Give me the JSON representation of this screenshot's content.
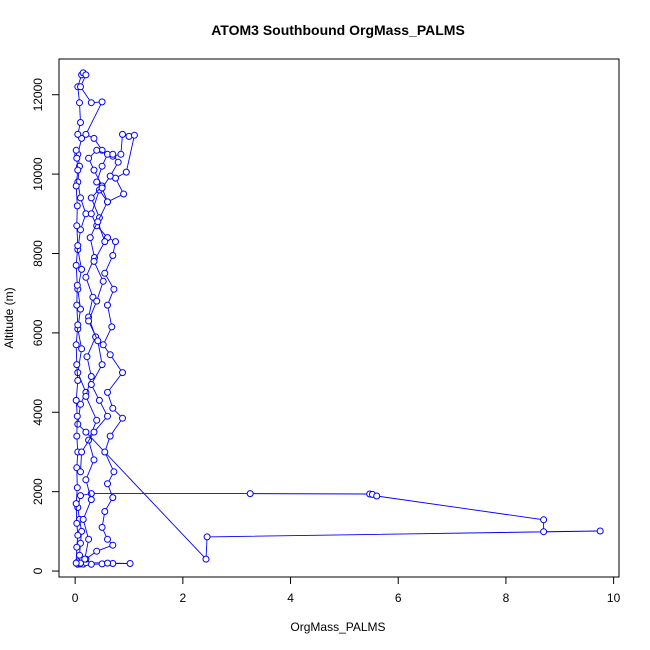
{
  "chart_data": {
    "type": "line",
    "title": "ATOM3 Southbound OrgMass_PALMS",
    "xlabel": "OrgMass_PALMS",
    "ylabel": "Altitude (m)",
    "xlim": [
      -0.3,
      10.1
    ],
    "ylim": [
      -150,
      12900
    ],
    "xticks": [
      0,
      2,
      4,
      6,
      8,
      10
    ],
    "yticks": [
      0,
      2000,
      4000,
      6000,
      8000,
      10000,
      12000
    ],
    "grid": false,
    "legend": "none",
    "marker": "open-circle",
    "color": "#0000ff",
    "series": [
      {
        "points": [
          [
            0.05,
            170
          ],
          [
            0.1,
            180
          ],
          [
            0.15,
            175
          ],
          [
            0.3,
            170
          ],
          [
            0.5,
            180
          ],
          [
            0.7,
            190
          ],
          [
            1.02,
            190
          ],
          [
            0.6,
            200
          ],
          [
            0.2,
            210
          ],
          [
            0.05,
            230
          ],
          [
            0.08,
            400
          ],
          [
            0.1,
            700
          ],
          [
            0.12,
            1000
          ],
          [
            0.08,
            1300
          ],
          [
            0.05,
            1600
          ],
          [
            0.1,
            1900
          ],
          [
            0.3,
            1950
          ],
          [
            3.25,
            1950
          ],
          [
            5.47,
            1940
          ],
          [
            5.52,
            1930
          ],
          [
            5.6,
            1890
          ],
          [
            8.7,
            1290
          ],
          [
            8.7,
            990
          ],
          [
            9.75,
            1010
          ],
          [
            2.45,
            860
          ],
          [
            2.43,
            300
          ],
          [
            0.2,
            3500
          ],
          [
            0.05,
            3700
          ],
          [
            0.1,
            4200
          ],
          [
            0.2,
            4500
          ],
          [
            0.05,
            5000
          ],
          [
            0.12,
            5600
          ],
          [
            0.05,
            6100
          ],
          [
            0.1,
            6600
          ],
          [
            0.05,
            7100
          ],
          [
            0.12,
            7600
          ],
          [
            0.05,
            8100
          ],
          [
            0.1,
            8600
          ],
          [
            0.2,
            9000
          ],
          [
            0.1,
            9400
          ],
          [
            0.05,
            9800
          ],
          [
            0.08,
            10200
          ],
          [
            0.05,
            10500
          ],
          [
            0.12,
            10900
          ],
          [
            0.05,
            11000
          ],
          [
            0.1,
            11300
          ],
          [
            0.08,
            11800
          ],
          [
            0.05,
            12200
          ],
          [
            0.12,
            12500
          ],
          [
            0.15,
            12550
          ],
          [
            0.2,
            12500
          ],
          [
            0.1,
            12200
          ],
          [
            0.3,
            11800
          ],
          [
            0.5,
            11820
          ],
          [
            0.2,
            11000
          ],
          [
            0.35,
            10900
          ],
          [
            0.5,
            10600
          ],
          [
            0.7,
            10450
          ],
          [
            0.85,
            10500
          ],
          [
            0.88,
            11000
          ],
          [
            1.0,
            10950
          ],
          [
            1.1,
            10980
          ],
          [
            0.95,
            10050
          ],
          [
            0.75,
            9900
          ],
          [
            0.9,
            9500
          ],
          [
            0.6,
            9300
          ],
          [
            0.45,
            9600
          ],
          [
            0.3,
            9000
          ],
          [
            0.4,
            8700
          ],
          [
            0.6,
            8400
          ],
          [
            0.75,
            8300
          ],
          [
            0.7,
            7950
          ],
          [
            0.55,
            7500
          ],
          [
            0.72,
            7100
          ],
          [
            0.6,
            6700
          ],
          [
            0.68,
            6150
          ],
          [
            0.52,
            5700
          ],
          [
            0.65,
            5450
          ],
          [
            0.88,
            5000
          ],
          [
            0.6,
            4500
          ],
          [
            0.7,
            4100
          ],
          [
            0.88,
            3850
          ],
          [
            0.65,
            3400
          ],
          [
            0.55,
            3000
          ],
          [
            0.72,
            2500
          ],
          [
            0.6,
            2200
          ],
          [
            0.7,
            1850
          ],
          [
            0.55,
            1500
          ],
          [
            0.5,
            1100
          ],
          [
            0.6,
            800
          ],
          [
            0.7,
            650
          ],
          [
            0.4,
            500
          ],
          [
            0.2,
            300
          ],
          [
            0.1,
            200
          ]
        ]
      },
      {
        "points": [
          [
            0.02,
            200
          ],
          [
            0.03,
            600
          ],
          [
            0.05,
            900
          ],
          [
            0.03,
            1200
          ],
          [
            0.02,
            1700
          ],
          [
            0.04,
            2100
          ],
          [
            0.03,
            2600
          ],
          [
            0.05,
            3000
          ],
          [
            0.03,
            3400
          ],
          [
            0.04,
            3900
          ],
          [
            0.02,
            4300
          ],
          [
            0.05,
            4800
          ],
          [
            0.03,
            5200
          ],
          [
            0.02,
            5700
          ],
          [
            0.05,
            6200
          ],
          [
            0.03,
            6700
          ],
          [
            0.04,
            7200
          ],
          [
            0.02,
            7700
          ],
          [
            0.05,
            8200
          ],
          [
            0.03,
            8700
          ],
          [
            0.04,
            9200
          ],
          [
            0.02,
            9700
          ],
          [
            0.05,
            10100
          ],
          [
            0.03,
            10400
          ],
          [
            0.02,
            10600
          ]
        ]
      },
      {
        "points": [
          [
            0.18,
            300
          ],
          [
            0.25,
            800
          ],
          [
            0.15,
            1300
          ],
          [
            0.3,
            1800
          ],
          [
            0.2,
            2300
          ],
          [
            0.35,
            2800
          ],
          [
            0.25,
            3300
          ],
          [
            0.4,
            3800
          ],
          [
            0.2,
            4400
          ],
          [
            0.3,
            4900
          ],
          [
            0.22,
            5400
          ],
          [
            0.38,
            5900
          ],
          [
            0.25,
            6400
          ],
          [
            0.33,
            6900
          ],
          [
            0.2,
            7400
          ],
          [
            0.36,
            7900
          ],
          [
            0.28,
            8400
          ],
          [
            0.45,
            8900
          ],
          [
            0.3,
            9400
          ],
          [
            0.5,
            9700
          ],
          [
            0.35,
            10100
          ],
          [
            0.25,
            10400
          ],
          [
            0.4,
            10600
          ],
          [
            0.6,
            10500
          ],
          [
            0.5,
            10200
          ],
          [
            0.4,
            9800
          ]
        ]
      },
      {
        "points": [
          [
            0.1,
            2500
          ],
          [
            0.12,
            3000
          ],
          [
            0.35,
            3500
          ],
          [
            0.6,
            3900
          ],
          [
            0.45,
            4300
          ],
          [
            0.3,
            4700
          ],
          [
            0.5,
            5200
          ],
          [
            0.42,
            5800
          ],
          [
            0.25,
            6300
          ],
          [
            0.4,
            6800
          ],
          [
            0.52,
            7300
          ],
          [
            0.35,
            7800
          ],
          [
            0.55,
            8300
          ],
          [
            0.42,
            8800
          ],
          [
            0.6,
            9300
          ],
          [
            0.5,
            9650
          ],
          [
            0.65,
            9950
          ],
          [
            0.8,
            10300
          ],
          [
            0.7,
            10500
          ]
        ]
      }
    ]
  }
}
